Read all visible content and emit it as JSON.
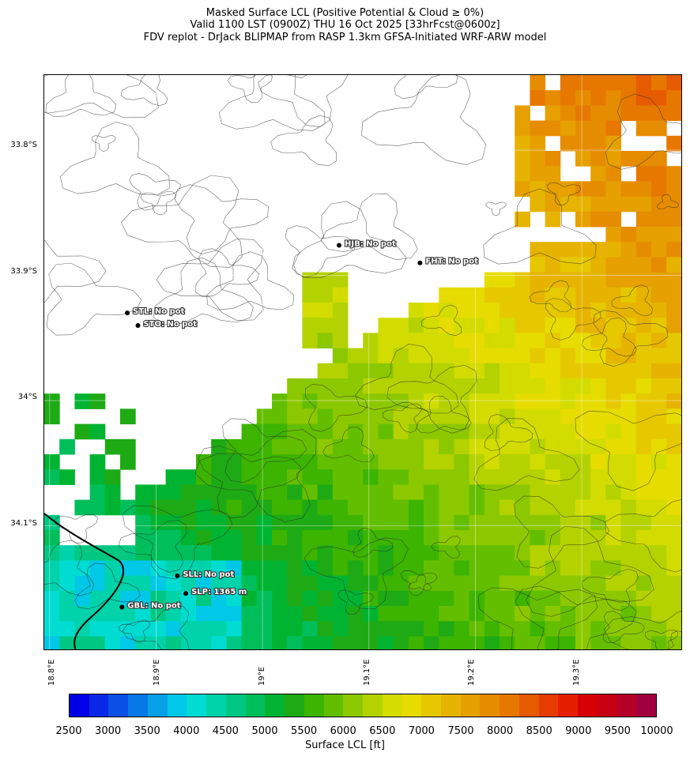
{
  "title": {
    "line1": "Masked Surface LCL (Positive Potential & Cloud ≥ 0%)",
    "line2": "Valid 1100 LST (0900Z) THU 16 Oct 2025 [33hrFcst@0600z]",
    "line3": "FDV replot - DrJack BLIPMAP from RASP 1.3km GFSA-Initiated WRF-ARW model"
  },
  "axes": {
    "lat_labels": [
      "33.8°S",
      "33.9°S",
      "34°S",
      "34.1°S"
    ],
    "lon_labels": [
      "18.8°E",
      "18.9°E",
      "19°E",
      "19.1°E",
      "19.2°E",
      "19.3°E"
    ],
    "lat_range": [
      -34.2,
      -33.74
    ],
    "lon_range": [
      18.795,
      19.395
    ]
  },
  "stations": [
    {
      "label": "HJB: No pot",
      "lon": 19.072,
      "lat": -33.876
    },
    {
      "label": "FHT: No pot",
      "lon": 19.148,
      "lat": -33.89
    },
    {
      "label": "STL: No pot",
      "lon": 18.873,
      "lat": -33.93
    },
    {
      "label": "STO: No pot",
      "lon": 18.883,
      "lat": -33.94
    },
    {
      "label": "SLL: No pot",
      "lon": 18.92,
      "lat": -34.14
    },
    {
      "label": "SLP: 1365 m",
      "lon": 18.928,
      "lat": -34.154
    },
    {
      "label": "GBL: No pot",
      "lon": 18.868,
      "lat": -34.165
    }
  ],
  "colorbar": {
    "label": "Surface LCL [ft]",
    "ticks": [
      "2500",
      "3000",
      "3500",
      "4000",
      "4500",
      "5000",
      "5500",
      "6000",
      "6500",
      "7000",
      "7500",
      "8000",
      "8500",
      "9000",
      "9500",
      "10000"
    ],
    "colors": [
      "#0000e6",
      "#0a28e8",
      "#0a50e6",
      "#0878e6",
      "#08a0e6",
      "#00c8e6",
      "#00dcd2",
      "#00d2aa",
      "#00c882",
      "#00be5a",
      "#00b432",
      "#1eaa14",
      "#3cb400",
      "#64be00",
      "#8cc800",
      "#b4d200",
      "#d2dc00",
      "#e6dc00",
      "#e6c800",
      "#e6b400",
      "#e6a000",
      "#e68c00",
      "#e67800",
      "#e65a00",
      "#e63c00",
      "#e61e00",
      "#d70000",
      "#c80014",
      "#b40028",
      "#a0003c"
    ]
  },
  "legend": {
    "field": "Surface LCL",
    "units": "ft",
    "masked_color": "#ffffff"
  }
}
